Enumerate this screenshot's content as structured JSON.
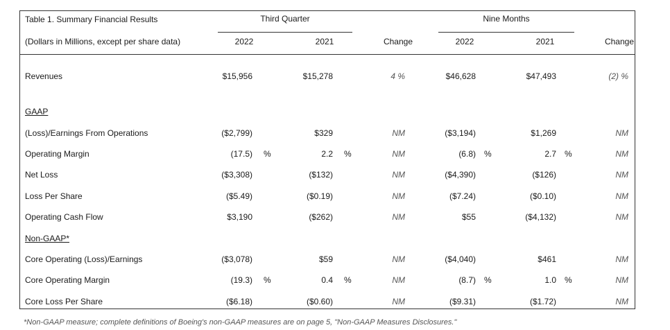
{
  "table": {
    "title": "Table 1. Summary Financial Results",
    "units": "(Dollars in Millions, except per share data)",
    "group1": "Third Quarter",
    "group2": "Nine Months",
    "col_2022": "2022",
    "col_2021": "2021",
    "col_change": "Change",
    "section_gaap": "GAAP",
    "section_nongaap": "Non-GAAP*",
    "rows": [
      {
        "label": "Revenues",
        "q22": "$15,956",
        "q21": "$15,278",
        "qch": "4 %",
        "n22": "$46,628",
        "n21": "$47,493",
        "nch": "(2) %"
      },
      {
        "label": "(Loss)/Earnings From Operations",
        "q22": "($2,799)",
        "q21": "$329",
        "qch": "NM",
        "n22": "($3,194)",
        "n21": "$1,269",
        "nch": "NM"
      },
      {
        "label": "Operating Margin",
        "q22": "(17.5)",
        "q21": "2.2",
        "qch": "NM",
        "n22": "(6.8)",
        "n21": "2.7",
        "nch": "NM",
        "pct": "%"
      },
      {
        "label": "Net Loss",
        "q22": "($3,308)",
        "q21": "($132)",
        "qch": "NM",
        "n22": "($4,390)",
        "n21": "($126)",
        "nch": "NM"
      },
      {
        "label": "Loss Per Share",
        "q22": "($5.49)",
        "q21": "($0.19)",
        "qch": "NM",
        "n22": "($7.24)",
        "n21": "($0.10)",
        "nch": "NM"
      },
      {
        "label": "Operating Cash Flow",
        "q22": "$3,190",
        "q21": "($262)",
        "qch": "NM",
        "n22": "$55",
        "n21": "($4,132)",
        "nch": "NM"
      },
      {
        "label": "Core Operating (Loss)/Earnings",
        "q22": "($3,078)",
        "q21": "$59",
        "qch": "NM",
        "n22": "($4,040)",
        "n21": "$461",
        "nch": "NM"
      },
      {
        "label": "Core Operating Margin",
        "q22": "(19.3)",
        "q21": "0.4",
        "qch": "NM",
        "n22": "(8.7)",
        "n21": "1.0",
        "nch": "NM",
        "pct": "%"
      },
      {
        "label": "Core Loss Per Share",
        "q22": "($6.18)",
        "q21": "($0.60)",
        "qch": "NM",
        "n22": "($9.31)",
        "n21": "($1.72)",
        "nch": "NM"
      }
    ]
  },
  "footnote": "*Non-GAAP measure; complete definitions of Boeing's non-GAAP measures are on page 5, \"Non-GAAP Measures Disclosures.\""
}
